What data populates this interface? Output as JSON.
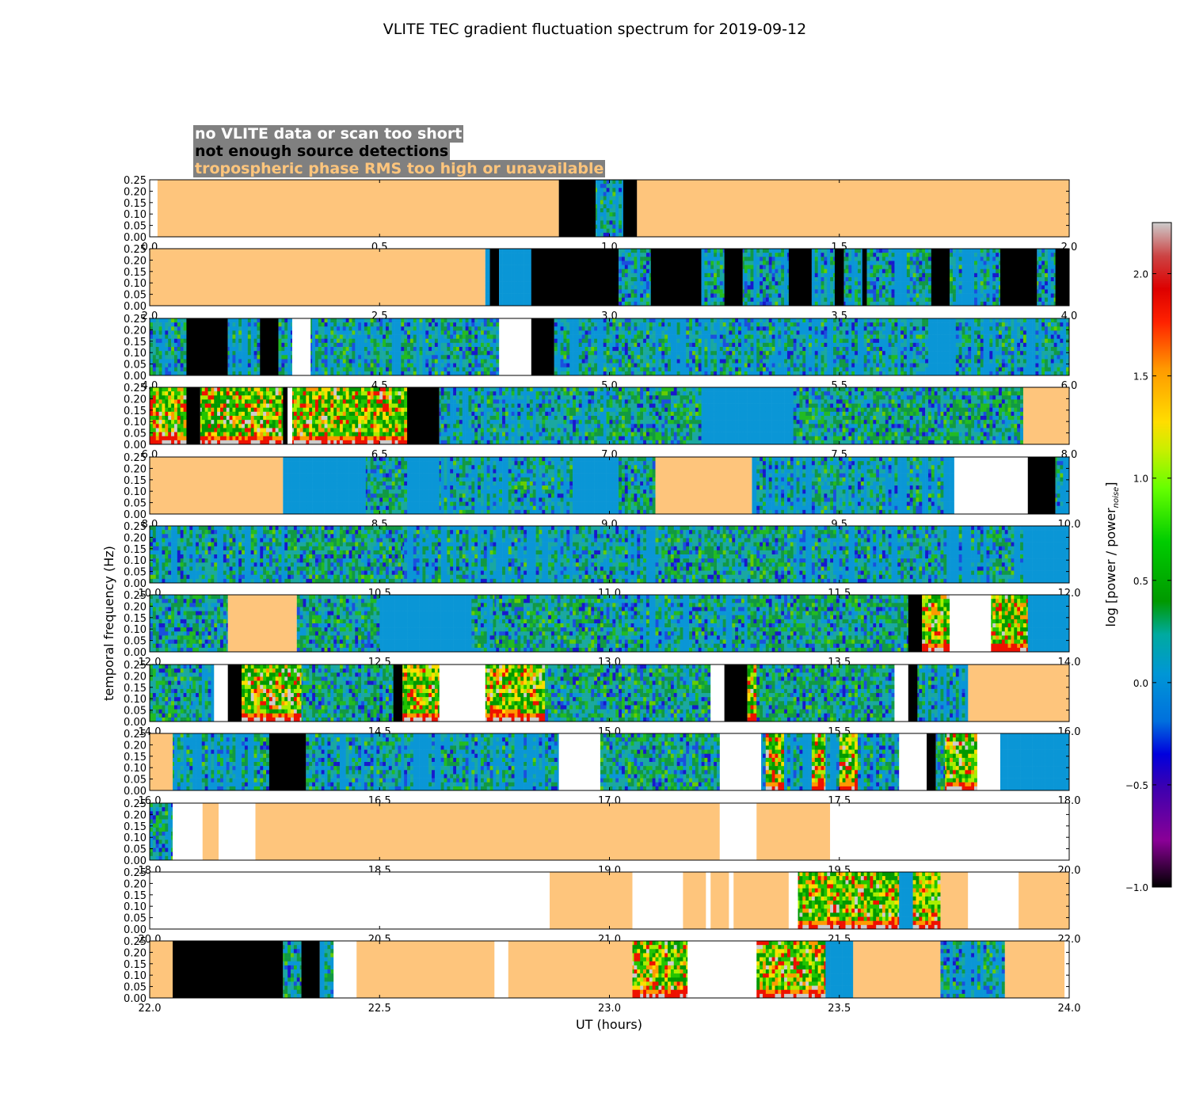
{
  "chart_data": {
    "type": "heatmap",
    "title": "VLITE TEC gradient fluctuation spectrum for 2019-09-12",
    "xlabel": "UT (hours)",
    "ylabel": "temporal frequency (Hz)",
    "colorbar_label": "log [power / power_noise]",
    "colorbar_range": [
      -1.0,
      2.25
    ],
    "colorbar_ticks": [
      "−1.0",
      "−0.5",
      "0.0",
      "0.5",
      "1.0",
      "1.5",
      "2.0"
    ],
    "colormap": "nipy_spectral",
    "ylim": [
      0.0,
      0.25
    ],
    "ytick_labels": [
      "0.00",
      "0.05",
      "0.10",
      "0.15",
      "0.20",
      "0.25"
    ],
    "legend": {
      "no_data": "no VLITE data or scan too short",
      "no_sources": "not enough source detections",
      "tropo": "tropospheric phase RMS too high or unavailable"
    },
    "category_colors": {
      "no_data": "#ffffff",
      "no_sources": "#000000",
      "tropo": "#fec57c",
      "quiet": "#0a96d6"
    },
    "panels": [
      {
        "xlim": [
          0.0,
          2.0
        ],
        "xtick_labels": [
          "0.0",
          "0.5",
          "1.0",
          "1.5",
          "2.0"
        ],
        "segments": [
          [
            0.0,
            0.017,
            "no_data"
          ],
          [
            0.017,
            0.89,
            "tropo"
          ],
          [
            0.89,
            0.97,
            "no_sources"
          ],
          [
            0.97,
            1.03,
            "data"
          ],
          [
            1.03,
            1.06,
            "no_sources"
          ],
          [
            1.06,
            2.0,
            "tropo"
          ]
        ]
      },
      {
        "xlim": [
          2.0,
          4.0
        ],
        "xtick_labels": [
          "2.0",
          "2.5",
          "3.0",
          "3.5",
          "4.0"
        ],
        "segments": [
          [
            2.0,
            2.73,
            "tropo"
          ],
          [
            2.73,
            2.74,
            "quiet"
          ],
          [
            2.74,
            2.76,
            "no_sources"
          ],
          [
            2.76,
            2.83,
            "quiet"
          ],
          [
            2.83,
            3.02,
            "no_sources"
          ],
          [
            3.02,
            3.09,
            "data"
          ],
          [
            3.09,
            3.2,
            "no_sources"
          ],
          [
            3.2,
            3.25,
            "data"
          ],
          [
            3.25,
            3.29,
            "no_sources"
          ],
          [
            3.29,
            3.39,
            "data"
          ],
          [
            3.39,
            3.44,
            "no_sources"
          ],
          [
            3.44,
            3.49,
            "data"
          ],
          [
            3.49,
            3.51,
            "no_sources"
          ],
          [
            3.51,
            3.55,
            "data"
          ],
          [
            3.55,
            3.56,
            "no_sources"
          ],
          [
            3.56,
            3.7,
            "data"
          ],
          [
            3.7,
            3.74,
            "no_sources"
          ],
          [
            3.74,
            3.85,
            "data"
          ],
          [
            3.85,
            3.93,
            "no_sources"
          ],
          [
            3.93,
            3.97,
            "data"
          ],
          [
            3.97,
            4.0,
            "no_sources"
          ]
        ]
      },
      {
        "xlim": [
          4.0,
          6.0
        ],
        "xtick_labels": [
          "4.0",
          "4.5",
          "5.0",
          "5.5",
          "6.0"
        ],
        "segments": [
          [
            4.0,
            4.08,
            "data"
          ],
          [
            4.08,
            4.17,
            "no_sources"
          ],
          [
            4.17,
            4.24,
            "data"
          ],
          [
            4.24,
            4.28,
            "no_sources"
          ],
          [
            4.28,
            4.31,
            "data"
          ],
          [
            4.31,
            4.35,
            "no_data"
          ],
          [
            4.35,
            4.76,
            "data"
          ],
          [
            4.76,
            4.83,
            "no_data"
          ],
          [
            4.83,
            4.88,
            "no_sources"
          ],
          [
            4.88,
            6.0,
            "data"
          ]
        ]
      },
      {
        "xlim": [
          6.0,
          8.0
        ],
        "xtick_labels": [
          "6.0",
          "6.5",
          "7.0",
          "7.5",
          "8.0"
        ],
        "segments": [
          [
            6.0,
            6.08,
            "active"
          ],
          [
            6.08,
            6.11,
            "no_sources"
          ],
          [
            6.11,
            6.29,
            "active"
          ],
          [
            6.29,
            6.3,
            "no_sources"
          ],
          [
            6.3,
            6.31,
            "no_data"
          ],
          [
            6.31,
            6.56,
            "active"
          ],
          [
            6.56,
            6.63,
            "no_sources"
          ],
          [
            6.63,
            7.0,
            "data"
          ],
          [
            7.0,
            7.2,
            "mixed"
          ],
          [
            7.2,
            7.4,
            "quiet"
          ],
          [
            7.4,
            7.9,
            "mixed"
          ],
          [
            7.9,
            8.0,
            "tropo"
          ]
        ]
      },
      {
        "xlim": [
          8.0,
          10.0
        ],
        "xtick_labels": [
          "8.0",
          "8.5",
          "9.0",
          "9.5",
          "10.0"
        ],
        "segments": [
          [
            8.0,
            8.29,
            "tropo"
          ],
          [
            8.29,
            8.47,
            "quiet"
          ],
          [
            8.47,
            8.56,
            "mixed"
          ],
          [
            8.56,
            8.63,
            "quiet"
          ],
          [
            8.63,
            8.92,
            "data"
          ],
          [
            8.92,
            9.02,
            "quiet"
          ],
          [
            9.02,
            9.1,
            "mixed"
          ],
          [
            9.1,
            9.31,
            "tropo"
          ],
          [
            9.31,
            9.75,
            "data"
          ],
          [
            9.75,
            9.91,
            "no_data"
          ],
          [
            9.91,
            9.97,
            "no_sources"
          ],
          [
            9.97,
            10.0,
            "data"
          ]
        ]
      },
      {
        "xlim": [
          10.0,
          12.0
        ],
        "xtick_labels": [
          "10.0",
          "10.5",
          "11.0",
          "11.5",
          "12.0"
        ],
        "segments": [
          [
            10.0,
            10.3,
            "data"
          ],
          [
            10.3,
            10.55,
            "mixed"
          ],
          [
            10.55,
            11.1,
            "data"
          ],
          [
            11.1,
            11.4,
            "mixed"
          ],
          [
            11.4,
            11.9,
            "data"
          ],
          [
            11.9,
            12.0,
            "quiet"
          ]
        ]
      },
      {
        "xlim": [
          12.0,
          14.0
        ],
        "xtick_labels": [
          "12.0",
          "12.5",
          "13.0",
          "13.5",
          "14.0"
        ],
        "segments": [
          [
            12.0,
            12.17,
            "mixed"
          ],
          [
            12.17,
            12.32,
            "tropo"
          ],
          [
            12.32,
            12.5,
            "mixed"
          ],
          [
            12.5,
            12.7,
            "quiet"
          ],
          [
            12.7,
            12.75,
            "data"
          ],
          [
            12.75,
            13.0,
            "mixed"
          ],
          [
            13.0,
            13.3,
            "data"
          ],
          [
            13.3,
            13.65,
            "mixed"
          ],
          [
            13.65,
            13.68,
            "no_sources"
          ],
          [
            13.68,
            13.74,
            "active"
          ],
          [
            13.74,
            13.83,
            "no_data"
          ],
          [
            13.83,
            13.91,
            "active"
          ],
          [
            13.91,
            14.0,
            "quiet"
          ]
        ]
      },
      {
        "xlim": [
          14.0,
          16.0
        ],
        "xtick_labels": [
          "14.0",
          "14.5",
          "15.0",
          "15.5",
          "16.0"
        ],
        "segments": [
          [
            14.0,
            14.09,
            "mixed"
          ],
          [
            14.09,
            14.14,
            "data"
          ],
          [
            14.14,
            14.17,
            "no_data"
          ],
          [
            14.17,
            14.2,
            "no_sources"
          ],
          [
            14.2,
            14.33,
            "active"
          ],
          [
            14.33,
            14.53,
            "mixed"
          ],
          [
            14.53,
            14.55,
            "no_sources"
          ],
          [
            14.55,
            14.63,
            "active"
          ],
          [
            14.63,
            14.73,
            "no_data"
          ],
          [
            14.73,
            14.86,
            "active"
          ],
          [
            14.86,
            15.22,
            "mixed"
          ],
          [
            15.22,
            15.25,
            "no_data"
          ],
          [
            15.25,
            15.3,
            "no_sources"
          ],
          [
            15.3,
            15.32,
            "active"
          ],
          [
            15.32,
            15.62,
            "mixed"
          ],
          [
            15.62,
            15.65,
            "no_data"
          ],
          [
            15.65,
            15.67,
            "no_sources"
          ],
          [
            15.67,
            15.78,
            "data"
          ],
          [
            15.78,
            16.0,
            "tropo"
          ]
        ]
      },
      {
        "xlim": [
          16.0,
          18.0
        ],
        "xtick_labels": [
          "16.0",
          "16.5",
          "17.0",
          "17.5",
          "18.0"
        ],
        "segments": [
          [
            16.0,
            16.05,
            "tropo"
          ],
          [
            16.05,
            16.26,
            "data"
          ],
          [
            16.26,
            16.34,
            "no_sources"
          ],
          [
            16.34,
            16.89,
            "data"
          ],
          [
            16.89,
            16.98,
            "no_data"
          ],
          [
            16.98,
            17.24,
            "mixed"
          ],
          [
            17.24,
            17.33,
            "no_data"
          ],
          [
            17.33,
            17.34,
            "data"
          ],
          [
            17.34,
            17.38,
            "active"
          ],
          [
            17.38,
            17.44,
            "data"
          ],
          [
            17.44,
            17.47,
            "active"
          ],
          [
            17.47,
            17.5,
            "data"
          ],
          [
            17.5,
            17.54,
            "active"
          ],
          [
            17.54,
            17.63,
            "data"
          ],
          [
            17.63,
            17.69,
            "no_data"
          ],
          [
            17.69,
            17.71,
            "no_sources"
          ],
          [
            17.71,
            17.73,
            "data"
          ],
          [
            17.73,
            17.8,
            "active"
          ],
          [
            17.8,
            17.85,
            "no_data"
          ],
          [
            17.85,
            18.0,
            "quiet"
          ]
        ]
      },
      {
        "xlim": [
          18.0,
          20.0
        ],
        "xtick_labels": [
          "18.0",
          "18.5",
          "19.0",
          "19.5",
          "20.0"
        ],
        "segments": [
          [
            18.0,
            18.05,
            "data"
          ],
          [
            18.05,
            18.115,
            "no_data"
          ],
          [
            18.115,
            18.15,
            "tropo"
          ],
          [
            18.15,
            18.23,
            "no_data"
          ],
          [
            18.23,
            19.24,
            "tropo"
          ],
          [
            19.24,
            19.32,
            "no_data"
          ],
          [
            19.32,
            19.48,
            "tropo"
          ],
          [
            19.48,
            20.0,
            "no_data"
          ]
        ]
      },
      {
        "xlim": [
          20.0,
          22.0
        ],
        "xtick_labels": [
          "20.0",
          "20.5",
          "21.0",
          "21.5",
          "22.0"
        ],
        "segments": [
          [
            20.0,
            20.87,
            "no_data"
          ],
          [
            20.87,
            21.05,
            "tropo"
          ],
          [
            21.05,
            21.16,
            "no_data"
          ],
          [
            21.16,
            21.21,
            "tropo"
          ],
          [
            21.21,
            21.22,
            "no_data"
          ],
          [
            21.22,
            21.26,
            "tropo"
          ],
          [
            21.26,
            21.27,
            "no_data"
          ],
          [
            21.27,
            21.39,
            "tropo"
          ],
          [
            21.39,
            21.41,
            "no_data"
          ],
          [
            21.41,
            21.63,
            "active"
          ],
          [
            21.63,
            21.66,
            "quiet"
          ],
          [
            21.66,
            21.72,
            "active"
          ],
          [
            21.72,
            21.78,
            "tropo"
          ],
          [
            21.78,
            21.89,
            "no_data"
          ],
          [
            21.89,
            22.0,
            "tropo"
          ]
        ]
      },
      {
        "xlim": [
          22.0,
          24.0
        ],
        "xtick_labels": [
          "22.0",
          "22.5",
          "23.0",
          "23.5",
          "24.0"
        ],
        "segments": [
          [
            22.0,
            22.05,
            "tropo"
          ],
          [
            22.05,
            22.29,
            "no_sources"
          ],
          [
            22.29,
            22.33,
            "data"
          ],
          [
            22.33,
            22.37,
            "no_sources"
          ],
          [
            22.37,
            22.4,
            "data"
          ],
          [
            22.4,
            22.45,
            "no_data"
          ],
          [
            22.45,
            22.75,
            "tropo"
          ],
          [
            22.75,
            22.78,
            "no_data"
          ],
          [
            22.78,
            23.05,
            "tropo"
          ],
          [
            23.05,
            23.17,
            "active"
          ],
          [
            23.17,
            23.32,
            "no_data"
          ],
          [
            23.32,
            23.47,
            "active"
          ],
          [
            23.47,
            23.53,
            "quiet"
          ],
          [
            23.53,
            23.72,
            "tropo"
          ],
          [
            23.72,
            23.86,
            "data"
          ],
          [
            23.86,
            23.99,
            "tropo"
          ],
          [
            23.99,
            24.0,
            "no_data"
          ]
        ]
      }
    ]
  }
}
